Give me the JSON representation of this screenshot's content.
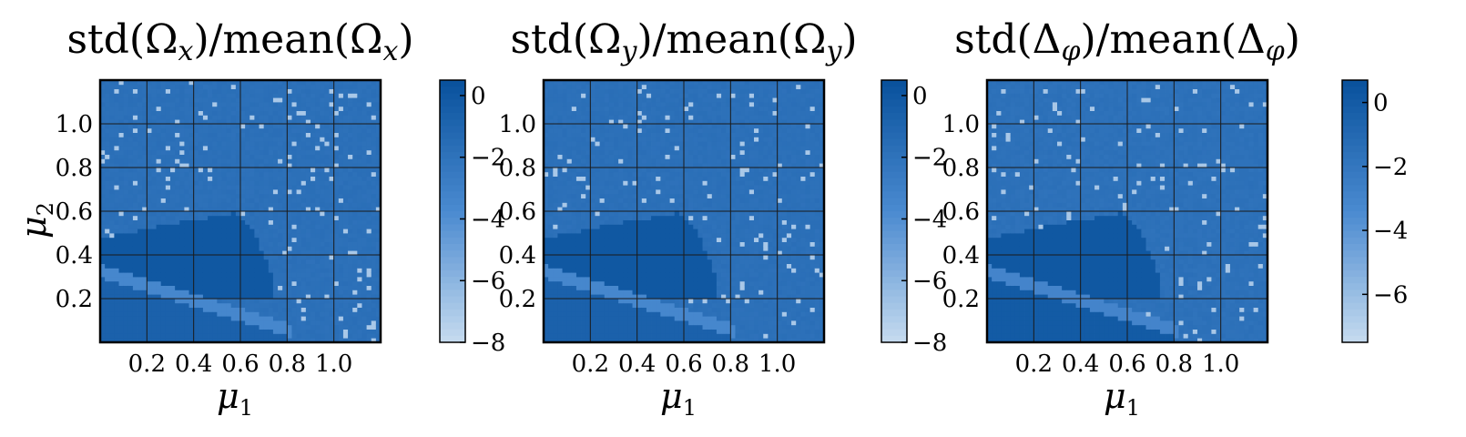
{
  "colors": {
    "cmap_dark": "#08519c",
    "cmap_mid": "#4a8ad0",
    "cmap_light": "#c6dbef",
    "grid": "#1a1a1a"
  },
  "chart_data": [
    {
      "type": "heatmap",
      "title": "std(Ω_x)/mean(Ω_x)",
      "title_parts": [
        "std(Ω",
        "x",
        ")/mean(Ω",
        "x",
        ")"
      ],
      "xlabel": "μ1",
      "xlabel_base": "μ",
      "xlabel_sub": "1",
      "ylabel": "μ2",
      "ylabel_base": "μ",
      "ylabel_sub": "2",
      "xlim": [
        0.0,
        1.2
      ],
      "ylim": [
        0.0,
        1.2
      ],
      "xticks": [
        "0.2",
        "0.4",
        "0.6",
        "0.8",
        "1.0"
      ],
      "yticks": [
        "0.2",
        "0.4",
        "0.6",
        "0.8",
        "1.0"
      ],
      "grid": true,
      "colorbar": {
        "min": -8,
        "max": 0.5,
        "ticks": [
          0,
          -2,
          -4,
          -6,
          -8
        ],
        "tick_labels": [
          "0",
          "−2",
          "−4",
          "−6",
          "−8"
        ]
      },
      "regions": {
        "background": -1.8,
        "core": 0.0,
        "band": -3.5,
        "lower": -0.7
      }
    },
    {
      "type": "heatmap",
      "title": "std(Ω_y)/mean(Ω_y)",
      "title_parts": [
        "std(Ω",
        "y",
        ")/mean(Ω",
        "y",
        ")"
      ],
      "xlabel": "μ1",
      "xlabel_base": "μ",
      "xlabel_sub": "1",
      "xlim": [
        0.0,
        1.2
      ],
      "ylim": [
        0.0,
        1.2
      ],
      "xticks": [
        "0.2",
        "0.4",
        "0.6",
        "0.8",
        "1.0"
      ],
      "yticks": [
        "0.2",
        "0.4",
        "0.6",
        "0.8",
        "1.0"
      ],
      "grid": true,
      "colorbar": {
        "min": -8,
        "max": 0.5,
        "ticks": [
          0,
          -2,
          -4,
          -6,
          -8
        ],
        "tick_labels": [
          "0",
          "−2",
          "−4",
          "−6",
          "−8"
        ]
      },
      "regions": {
        "background": -1.8,
        "core": 0.0,
        "band": -3.5,
        "lower": -0.7
      }
    },
    {
      "type": "heatmap",
      "title": "std(Δφ)/mean(Δφ)",
      "title_parts": [
        "std(Δ",
        "φ",
        ")/mean(Δ",
        "φ",
        ")"
      ],
      "xlabel": "μ1",
      "xlabel_base": "μ",
      "xlabel_sub": "1",
      "xlim": [
        0.0,
        1.2
      ],
      "ylim": [
        0.0,
        1.2
      ],
      "xticks": [
        "0.2",
        "0.4",
        "0.6",
        "0.8",
        "1.0"
      ],
      "yticks": [
        "0.2",
        "0.4",
        "0.6",
        "0.8",
        "1.0"
      ],
      "grid": true,
      "colorbar": {
        "min": -7.5,
        "max": 0.7,
        "ticks": [
          0,
          -2,
          -4,
          -6
        ],
        "tick_labels": [
          "0",
          "−2",
          "−4",
          "−6"
        ]
      },
      "regions": {
        "background": -1.6,
        "core": 0.2,
        "band": -3.0,
        "lower": 0.0
      }
    }
  ]
}
